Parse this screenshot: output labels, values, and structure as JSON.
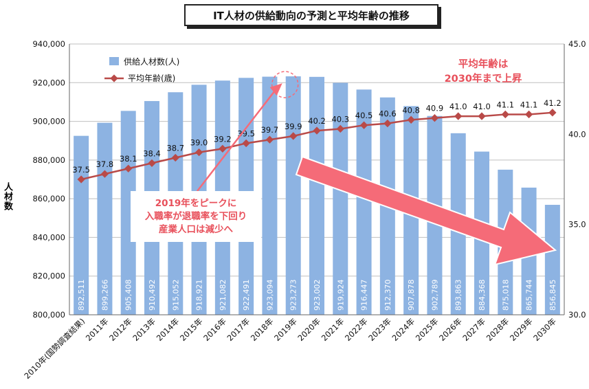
{
  "chart_data": {
    "type": "bar+line",
    "title": "IT人材の供給動向の予測と平均年齢の推移",
    "ylabel": "人材数",
    "y_left_lim": [
      800000,
      940000
    ],
    "y_left_ticks": [
      "800,000",
      "820,000",
      "840,000",
      "860,000",
      "880,000",
      "900,000",
      "920,000",
      "940,000"
    ],
    "y_right_lim": [
      30.0,
      45.0
    ],
    "y_right_ticks": [
      "30.0",
      "35.0",
      "40.0",
      "45.0"
    ],
    "categories": [
      "2010年(国勢調査結果)",
      "2011年",
      "2012年",
      "2013年",
      "2014年",
      "2015年",
      "2016年",
      "2017年",
      "2018年",
      "2019年",
      "2020年",
      "2021年",
      "2022年",
      "2023年",
      "2024年",
      "2025年",
      "2026年",
      "2027年",
      "2028年",
      "2029年",
      "2030年"
    ],
    "series": [
      {
        "name": "供給人材数(人)",
        "type": "bar",
        "axis": "left",
        "color": "#8db3e2",
        "values": [
          892511,
          899266,
          905408,
          910492,
          915052,
          918921,
          921082,
          922491,
          923094,
          923273,
          923002,
          919924,
          916447,
          912370,
          907878,
          902789,
          893863,
          884368,
          875018,
          865744,
          856845
        ],
        "labels": [
          "892,511",
          "899,266",
          "905,408",
          "910,492",
          "915,052",
          "918,921",
          "921,082",
          "922,491",
          "923,094",
          "923,273",
          "923,002",
          "919,924",
          "916,447",
          "912,370",
          "907,878",
          "902,789",
          "893,863",
          "884,368",
          "875,018",
          "865,744",
          "856,845"
        ]
      },
      {
        "name": "平均年齢(歳)",
        "type": "line",
        "axis": "right",
        "color": "#b94a48",
        "values": [
          37.5,
          37.8,
          38.1,
          38.4,
          38.7,
          39.0,
          39.2,
          39.5,
          39.7,
          39.9,
          40.2,
          40.3,
          40.5,
          40.6,
          40.8,
          40.9,
          41.0,
          41.0,
          41.1,
          41.1,
          41.2
        ],
        "labels": [
          "37.5",
          "37.8",
          "38.1",
          "38.4",
          "38.7",
          "39.0",
          "39.2",
          "39.5",
          "39.7",
          "39.9",
          "40.2",
          "40.3",
          "40.5",
          "40.6",
          "40.8",
          "40.9",
          "41.0",
          "41.0",
          "41.1",
          "41.1",
          "41.2"
        ]
      }
    ],
    "annotations": {
      "peak_line1": "2019年をピークに",
      "peak_line2": "入職率が退職率を下回り",
      "peak_line3": "産業人口は減少へ",
      "avg_line1": "平均年齢は",
      "avg_line2": "2030年まで上昇"
    },
    "colors": {
      "accent_red": "#e8505b",
      "arrow_fill": "#f56b78",
      "grid": "#bfbfbf"
    }
  }
}
